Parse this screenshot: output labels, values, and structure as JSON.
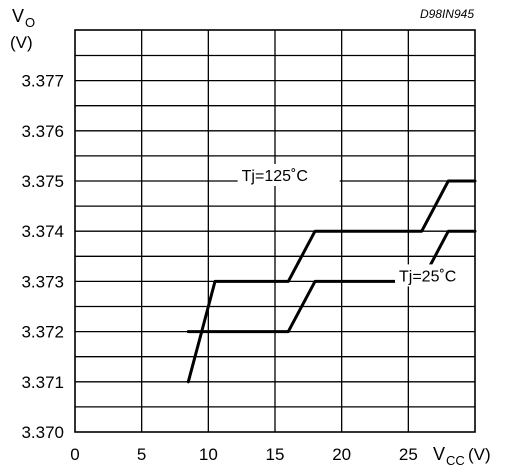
{
  "chart_data": {
    "type": "line",
    "code": "D98IN945",
    "ylabel_main": "V",
    "ylabel_sub": "O",
    "yunit": "(V)",
    "xlabel_main": "V",
    "xlabel_sub": "CC",
    "xunit": "(V)",
    "xlim": [
      0,
      30
    ],
    "ylim": [
      3.37,
      3.378
    ],
    "x_ticks": [
      {
        "value": 0,
        "label": "0"
      },
      {
        "value": 5,
        "label": "5"
      },
      {
        "value": 10,
        "label": "10"
      },
      {
        "value": 15,
        "label": "15"
      },
      {
        "value": 20,
        "label": "20"
      },
      {
        "value": 25,
        "label": "25"
      }
    ],
    "y_ticks": [
      {
        "value": 3.37,
        "label": "3.370"
      },
      {
        "value": 3.371,
        "label": "3.371"
      },
      {
        "value": 3.372,
        "label": "3.372"
      },
      {
        "value": 3.373,
        "label": "3.373"
      },
      {
        "value": 3.374,
        "label": "3.374"
      },
      {
        "value": 3.375,
        "label": "3.375"
      },
      {
        "value": 3.376,
        "label": "3.376"
      },
      {
        "value": 3.377,
        "label": "3.377"
      }
    ],
    "grid": true,
    "series": [
      {
        "name": "Tj=125˚C",
        "x": [
          8.5,
          9.5,
          10.5,
          12,
          14,
          16,
          18,
          20,
          22,
          24,
          26,
          28,
          30
        ],
        "y": [
          3.372,
          3.3725,
          3.37275,
          3.373,
          3.37325,
          3.37345,
          3.37365,
          3.3738,
          3.374,
          3.37425,
          3.3745,
          3.37475,
          3.375
        ]
      },
      {
        "name": "Tj=25˚C",
        "x": [
          8.5,
          9.5,
          10.5,
          12,
          14,
          16,
          18,
          20,
          22,
          24,
          26,
          28,
          30
        ],
        "y": [
          3.371,
          3.3715,
          3.37175,
          3.372,
          3.37225,
          3.37245,
          3.37265,
          3.3728,
          3.373,
          3.37325,
          3.3735,
          3.37375,
          3.374
        ]
      }
    ]
  }
}
